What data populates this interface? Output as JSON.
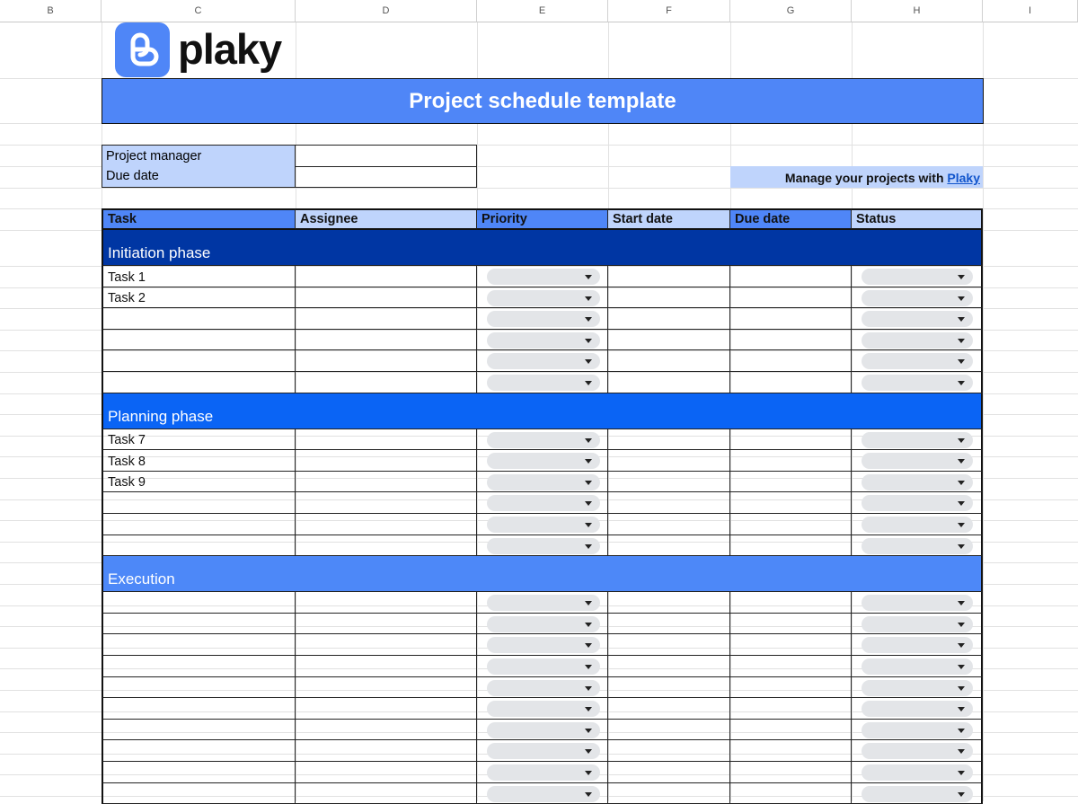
{
  "columns": [
    "B",
    "C",
    "D",
    "E",
    "F",
    "G",
    "H",
    "I"
  ],
  "logo": {
    "text": "plaky",
    "color": "#4f86f7"
  },
  "title": "Project schedule template",
  "info": {
    "project_manager_label": "Project manager",
    "project_manager_value": "",
    "due_date_label": "Due date",
    "due_date_value": ""
  },
  "promo": {
    "text": "Manage your projects with ",
    "link": "Plaky"
  },
  "table": {
    "headers": [
      "Task",
      "Assignee",
      "Priority",
      "Start date",
      "Due date",
      "Status"
    ],
    "phases": [
      {
        "name": "Initiation phase",
        "color": "#0036a3",
        "tasks": [
          "Task 1",
          "Task 2",
          "",
          "",
          "",
          ""
        ]
      },
      {
        "name": "Planning phase",
        "color": "#0a64f5",
        "tasks": [
          "Task 7",
          "Task 8",
          "Task 9",
          "",
          "",
          ""
        ]
      },
      {
        "name": "Execution",
        "color": "#4d88f8",
        "tasks": [
          "",
          "",
          "",
          "",
          "",
          "",
          "",
          "",
          "",
          ""
        ]
      }
    ]
  },
  "colors": {
    "header_dark": "#4f86f7",
    "header_light": "#bfd4fc",
    "title_bg": "#4f86f7"
  }
}
